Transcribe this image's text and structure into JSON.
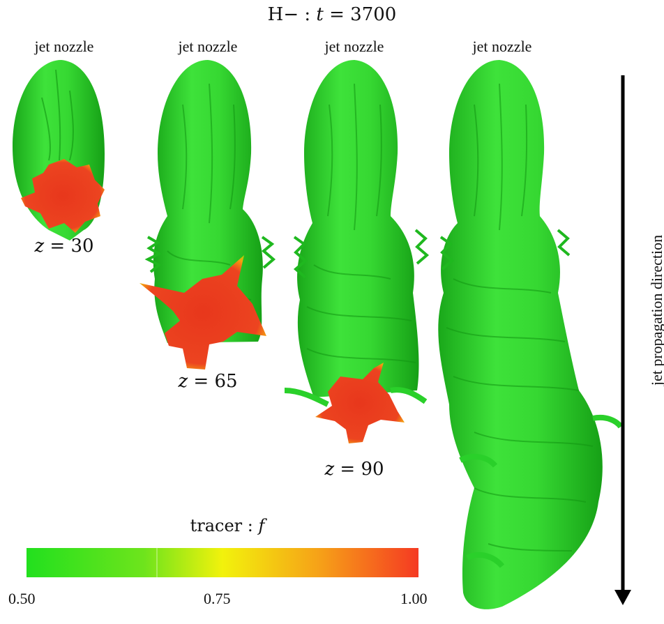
{
  "title": {
    "prefix": "H− : ",
    "var": "t",
    "equals": " = 3700"
  },
  "panels": [
    {
      "nozzle_label": "jet nozzle",
      "z_var": "z",
      "z_text": " = 30",
      "z_value": 30
    },
    {
      "nozzle_label": "jet nozzle",
      "z_var": "z",
      "z_text": " = 65",
      "z_value": 65
    },
    {
      "nozzle_label": "jet nozzle",
      "z_var": "z",
      "z_text": " = 90",
      "z_value": 90
    },
    {
      "nozzle_label": "jet nozzle"
    }
  ],
  "colorbar": {
    "title_prefix": "tracer : ",
    "title_var": "f",
    "ticks": [
      "0.50",
      "0.75",
      "1.00"
    ],
    "range": [
      0.5,
      1.0
    ],
    "colors": {
      "low": "#22e01e",
      "mid": "#f5f50a",
      "high": "#f53a22"
    }
  },
  "arrow": {
    "label": "jet propagation direction"
  },
  "colors": {
    "jet": "#2ed82e",
    "jet_dark": "#169e16",
    "slice": "#e8391c"
  }
}
